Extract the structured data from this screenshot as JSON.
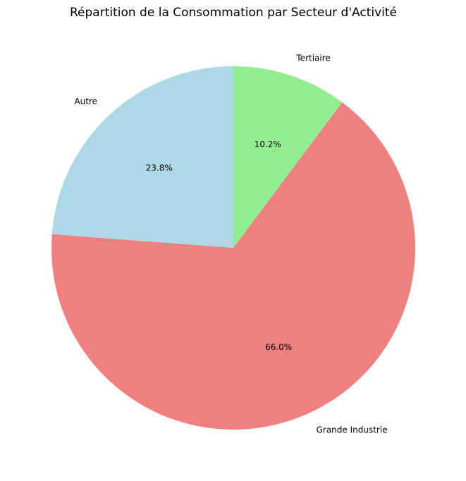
{
  "chart_data": {
    "type": "pie",
    "title": "Répartition de la Consommation par Secteur d'Activité",
    "start_angle_deg": 90,
    "direction": "counterclockwise",
    "slices": [
      {
        "label": "Autre",
        "value": 23.8,
        "pct_label": "23.8%",
        "color": "#add8e6"
      },
      {
        "label": "Grande Industrie",
        "value": 66.0,
        "pct_label": "66.0%",
        "color": "#f08080"
      },
      {
        "label": "Tertiaire",
        "value": 10.2,
        "pct_label": "10.2%",
        "color": "#90ee90"
      }
    ]
  }
}
